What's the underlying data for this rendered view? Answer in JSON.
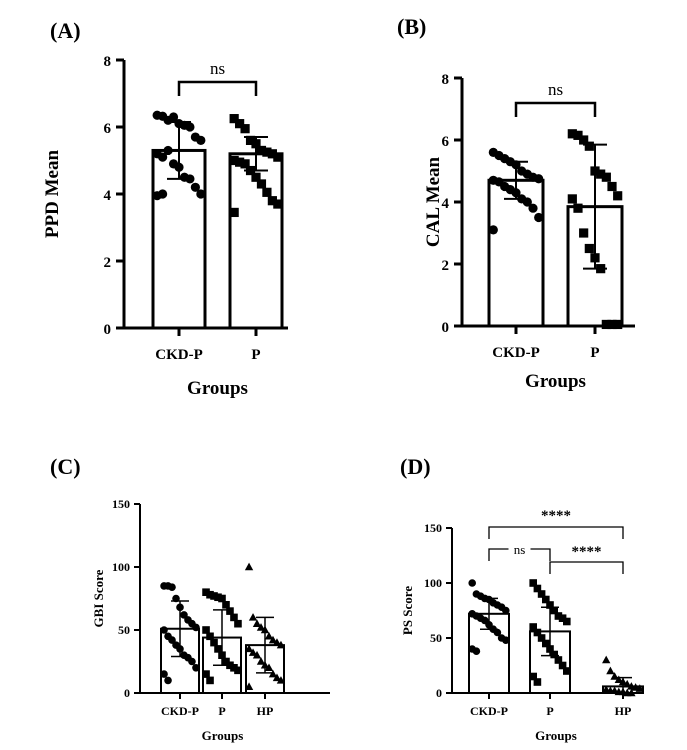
{
  "chart_data": [
    {
      "panel": "(A)",
      "type": "bar",
      "ylabel": "PPD Mean",
      "xlabel": "Groups",
      "ylim": [
        0,
        8
      ],
      "yticks": [
        0,
        2,
        4,
        6,
        8
      ],
      "categories": [
        "CKD-P",
        "P"
      ],
      "values": [
        5.3,
        5.2
      ],
      "errors": [
        0.85,
        0.5
      ],
      "markers": [
        "circle",
        "square"
      ],
      "points": [
        [
          6.35,
          6.32,
          6.2,
          6.3,
          6.1,
          6.05,
          6.0,
          5.7,
          5.6,
          5.2,
          5.1,
          5.3,
          4.9,
          4.8,
          4.5,
          4.45,
          4.2,
          4.0,
          3.95,
          4.0
        ],
        [
          6.25,
          6.1,
          5.95,
          5.6,
          5.5,
          5.3,
          5.25,
          5.2,
          5.1,
          5.0,
          4.95,
          4.9,
          4.7,
          4.5,
          4.3,
          4.05,
          3.8,
          3.7,
          3.45
        ]
      ],
      "comparisons": [
        {
          "from": 0,
          "to": 1,
          "label": "ns"
        }
      ]
    },
    {
      "panel": "(B)",
      "type": "bar",
      "ylabel": "CAL Mean",
      "xlabel": "Groups",
      "ylim": [
        0,
        8
      ],
      "yticks": [
        0,
        2,
        4,
        6,
        8
      ],
      "categories": [
        "CKD-P",
        "P"
      ],
      "values": [
        4.7,
        3.85
      ],
      "errors": [
        0.6,
        2.0
      ],
      "markers": [
        "circle",
        "square"
      ],
      "points": [
        [
          5.6,
          5.5,
          5.4,
          5.3,
          5.2,
          5.0,
          4.9,
          4.8,
          4.75,
          4.7,
          4.65,
          4.5,
          4.4,
          4.3,
          4.1,
          4.0,
          3.8,
          3.5,
          3.1
        ],
        [
          6.2,
          6.15,
          6.0,
          5.8,
          5.0,
          4.9,
          4.8,
          4.5,
          4.2,
          4.1,
          3.8,
          3.0,
          2.5,
          2.2,
          1.85,
          0.05,
          0.05,
          0.05
        ]
      ],
      "comparisons": [
        {
          "from": 0,
          "to": 1,
          "label": "ns"
        }
      ]
    },
    {
      "panel": "(C)",
      "type": "bar",
      "ylabel": "GBI Score",
      "xlabel": "Groups",
      "ylim": [
        0,
        150
      ],
      "yticks": [
        0,
        50,
        100,
        150
      ],
      "categories": [
        "CKD-P",
        "P",
        "HP"
      ],
      "values": [
        51,
        44,
        38
      ],
      "errors": [
        22,
        22,
        22
      ],
      "markers": [
        "circle",
        "square",
        "triangle"
      ],
      "points": [
        [
          85,
          85,
          84,
          75,
          68,
          62,
          58,
          55,
          52,
          50,
          45,
          42,
          38,
          35,
          30,
          28,
          25,
          20,
          15,
          10
        ],
        [
          80,
          78,
          77,
          76,
          75,
          70,
          65,
          60,
          55,
          50,
          45,
          40,
          35,
          30,
          25,
          22,
          20,
          18,
          15,
          10
        ],
        [
          100,
          60,
          55,
          52,
          50,
          45,
          42,
          40,
          38,
          35,
          32,
          30,
          25,
          22,
          20,
          15,
          12,
          10,
          5
        ]
      ],
      "comparisons": []
    },
    {
      "panel": "(D)",
      "type": "bar",
      "ylabel": "PS Score",
      "xlabel": "Groups",
      "ylim": [
        0,
        150
      ],
      "yticks": [
        0,
        50,
        100,
        150
      ],
      "categories": [
        "CKD-P",
        "P",
        "HP"
      ],
      "values": [
        72,
        56,
        6
      ],
      "errors": [
        14,
        22,
        8
      ],
      "markers": [
        "circle",
        "square",
        "triangle"
      ],
      "points": [
        [
          100,
          90,
          88,
          86,
          85,
          82,
          80,
          78,
          75,
          72,
          70,
          68,
          66,
          62,
          58,
          55,
          50,
          48,
          40,
          38
        ],
        [
          100,
          95,
          90,
          85,
          80,
          75,
          70,
          68,
          65,
          60,
          55,
          50,
          45,
          40,
          35,
          30,
          25,
          20,
          15,
          10
        ],
        [
          30,
          20,
          15,
          12,
          10,
          8,
          6,
          5,
          4,
          3,
          2,
          2,
          1,
          1,
          0,
          0
        ]
      ],
      "comparisons": [
        {
          "from": 0,
          "to": 1,
          "label": "ns"
        },
        {
          "from": 1,
          "to": 2,
          "label": "****"
        },
        {
          "from": 0,
          "to": 2,
          "label": "****"
        }
      ]
    }
  ]
}
